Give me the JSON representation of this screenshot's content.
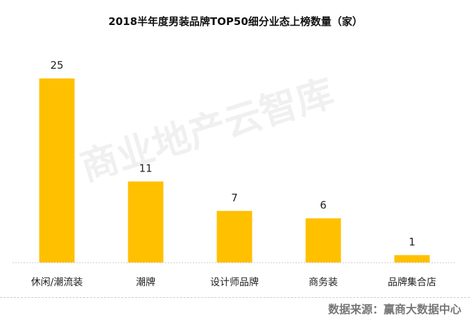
{
  "chart_data": {
    "type": "bar",
    "title": "2018半年度男装品牌TOP50细分业态上榜数量（家）",
    "categories": [
      "休闲/潮流装",
      "潮牌",
      "设计师品牌",
      "商务装",
      "品牌集合店"
    ],
    "values": [
      25,
      11,
      7,
      6,
      1
    ],
    "xlabel": "",
    "ylabel": "",
    "ylim": [
      0,
      25
    ],
    "grid": false,
    "data_labels": true,
    "bar_color": "#FFC000"
  },
  "watermark": "商业地产云智库",
  "source": "数据来源：赢商大数据中心"
}
